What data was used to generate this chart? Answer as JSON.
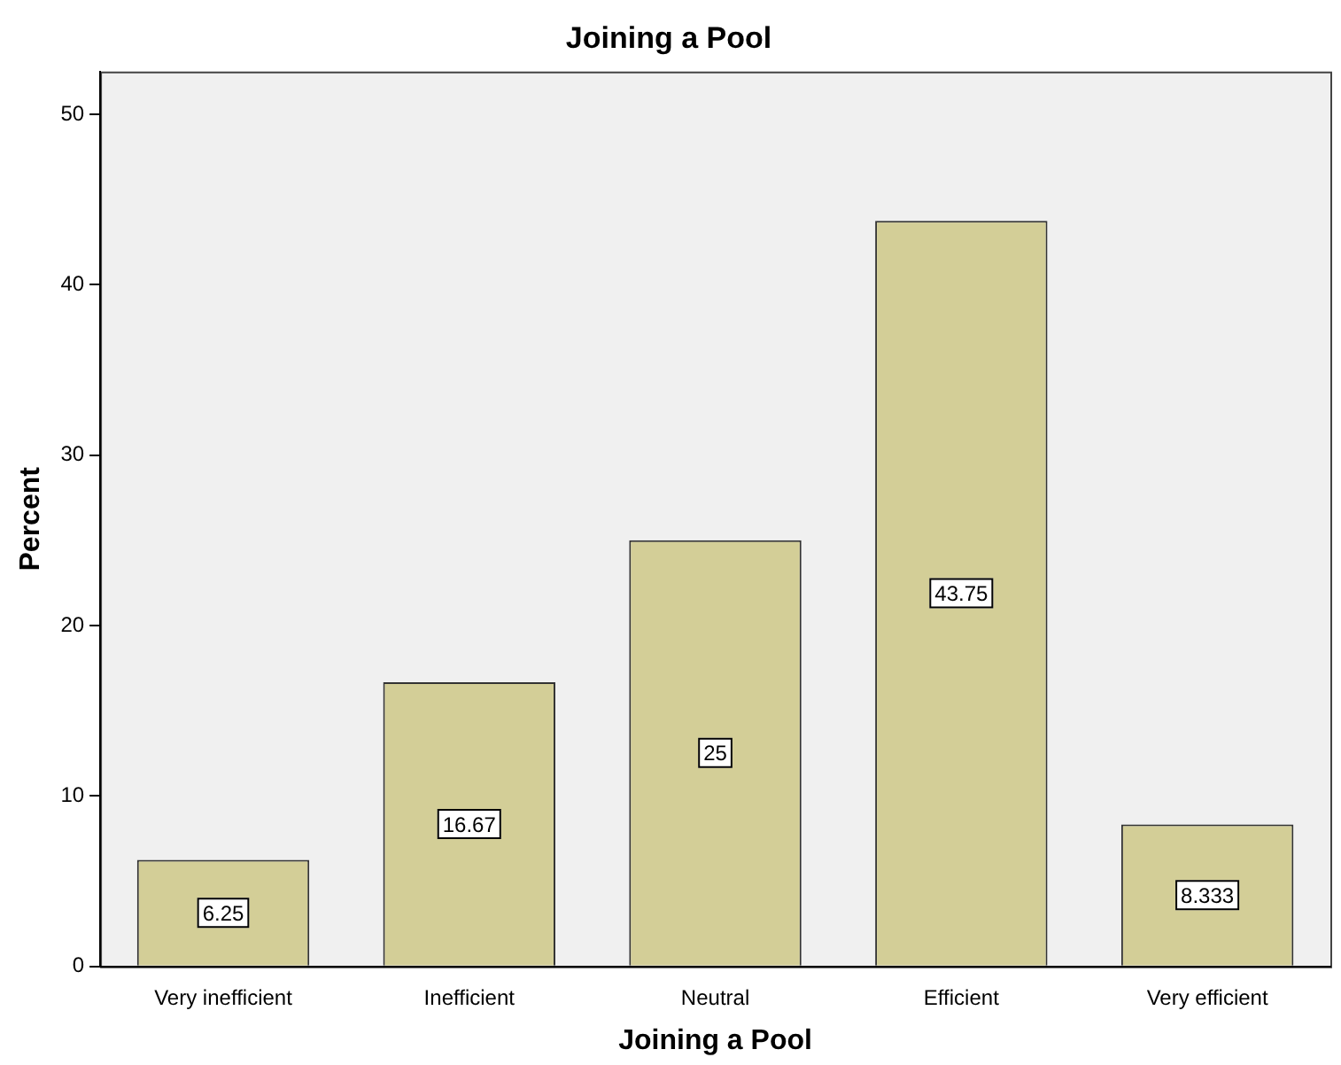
{
  "chart_data": {
    "type": "bar",
    "title": "Joining a Pool",
    "xlabel": "Joining a Pool",
    "ylabel": "Percent",
    "categories": [
      "Very inefficient",
      "Inefficient",
      "Neutral",
      "Efficient",
      "Very efficient"
    ],
    "values": [
      6.25,
      16.67,
      25,
      43.75,
      8.333
    ],
    "color": "#d3ce97",
    "ylim": [
      0,
      52.5
    ],
    "yticks": [
      0,
      10,
      20,
      30,
      40,
      50
    ],
    "grid": false,
    "legend": false,
    "data_labels": true
  }
}
